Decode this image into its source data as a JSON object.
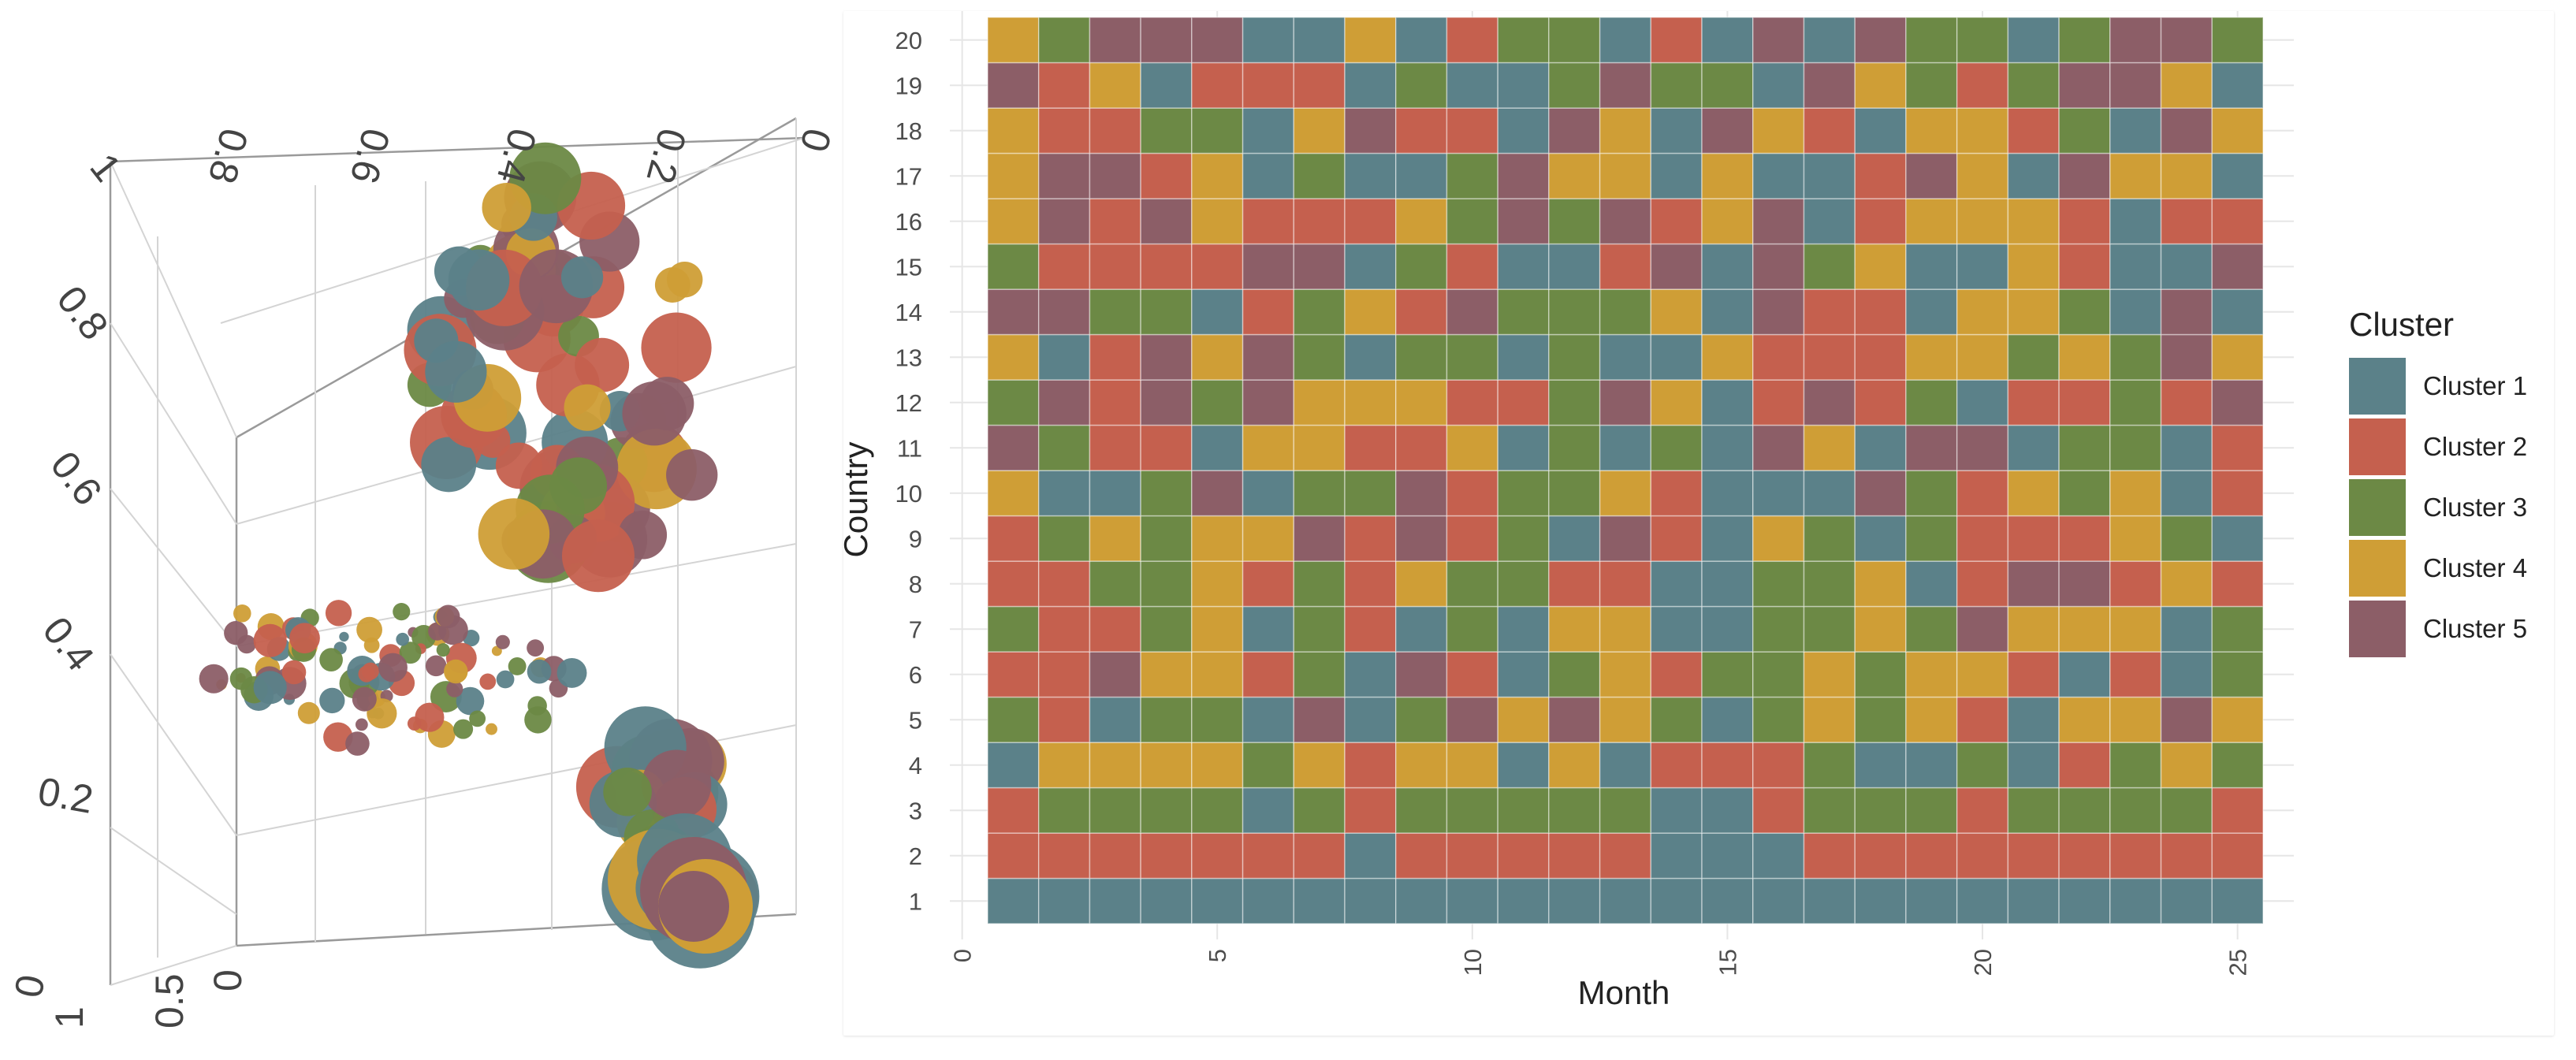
{
  "colors": {
    "Cluster 1": "#5b8189",
    "Cluster 2": "#c5604e",
    "Cluster 3": "#6c8945",
    "Cluster 4": "#cf9e36",
    "Cluster 5": "#8c5e67",
    "background": "#ffffff",
    "grid": "#e6e6e6"
  },
  "chart_data": [
    {
      "type": "scatter",
      "name": "3d-bubble-scatter",
      "title": "",
      "axes": {
        "axis_a": {
          "ticks": [
            "1",
            "0.8",
            "0.6",
            "0.4",
            "0.2",
            "0"
          ]
        },
        "axis_b": {
          "ticks": [
            "0.8",
            "0.6",
            "0.4",
            "0.2",
            "0"
          ]
        },
        "axis_c": {
          "ticks": [
            "1",
            "0.5",
            "0"
          ]
        }
      },
      "groups": [
        {
          "name": "upper-cluster",
          "center_approx": [
            0.7,
            0.2,
            0.8
          ],
          "size": "large",
          "count_approx": 60
        },
        {
          "name": "middle-cluster",
          "center_approx": [
            0.4,
            0.6,
            0.4
          ],
          "size": "small",
          "count_approx": 70
        },
        {
          "name": "lower-cluster",
          "center_approx": [
            0.1,
            0.2,
            0.1
          ],
          "size": "largest",
          "count_approx": 40
        }
      ],
      "series_colors": [
        "Cluster 1",
        "Cluster 2",
        "Cluster 3",
        "Cluster 4",
        "Cluster 5"
      ]
    },
    {
      "type": "heatmap",
      "name": "country-month-heatmap",
      "title": "",
      "xlabel": "Month",
      "ylabel": "Country",
      "x_ticks": [
        "0",
        "5",
        "10",
        "15",
        "20",
        "25"
      ],
      "x_range": [
        0,
        25
      ],
      "y_categories": [
        "1",
        "2",
        "3",
        "4",
        "5",
        "6",
        "7",
        "8",
        "9",
        "10",
        "11",
        "12",
        "13",
        "14",
        "15",
        "16",
        "17",
        "18",
        "19",
        "20"
      ],
      "months": 25,
      "legend_title": "Cluster",
      "legend": [
        "Cluster 1",
        "Cluster 2",
        "Cluster 3",
        "Cluster 4",
        "Cluster 5"
      ],
      "rows": {
        "1": [
          1,
          1,
          1,
          1,
          1,
          1,
          1,
          1,
          1,
          1,
          1,
          1,
          1,
          1,
          1,
          1,
          1,
          1,
          1,
          1,
          1,
          1,
          1,
          1,
          1
        ],
        "2": [
          2,
          2,
          2,
          2,
          2,
          2,
          2,
          1,
          2,
          2,
          2,
          2,
          2,
          1,
          1,
          1,
          2,
          2,
          2,
          2,
          2,
          2,
          2,
          2,
          2
        ],
        "3": [
          2,
          3,
          3,
          3,
          3,
          1,
          3,
          2,
          3,
          3,
          3,
          3,
          3,
          1,
          1,
          2,
          3,
          3,
          3,
          2,
          3,
          3,
          3,
          3,
          2
        ],
        "4": [
          1,
          4,
          4,
          4,
          4,
          3,
          4,
          2,
          4,
          4,
          1,
          4,
          1,
          2,
          2,
          2,
          3,
          1,
          1,
          3,
          1,
          2,
          3,
          4,
          3
        ],
        "5": [
          3,
          2,
          1,
          3,
          3,
          1,
          5,
          1,
          3,
          5,
          4,
          5,
          4,
          3,
          1,
          3,
          4,
          3,
          4,
          2,
          1,
          4,
          4,
          5,
          4
        ],
        "6": [
          2,
          2,
          5,
          4,
          4,
          2,
          3,
          1,
          5,
          2,
          1,
          3,
          4,
          2,
          3,
          3,
          4,
          3,
          4,
          4,
          2,
          1,
          2,
          1,
          3
        ],
        "7": [
          3,
          2,
          2,
          3,
          4,
          1,
          3,
          2,
          1,
          3,
          1,
          4,
          4,
          1,
          1,
          3,
          3,
          4,
          3,
          5,
          4,
          4,
          4,
          1,
          3
        ],
        "8": [
          2,
          2,
          3,
          3,
          4,
          2,
          3,
          2,
          4,
          3,
          3,
          2,
          2,
          1,
          1,
          3,
          3,
          4,
          1,
          2,
          5,
          5,
          2,
          4,
          2
        ],
        "9": [
          2,
          3,
          4,
          3,
          4,
          4,
          5,
          2,
          5,
          2,
          3,
          1,
          5,
          2,
          1,
          4,
          3,
          1,
          3,
          2,
          2,
          2,
          4,
          3,
          1
        ],
        "10": [
          4,
          1,
          1,
          3,
          5,
          1,
          3,
          3,
          5,
          2,
          3,
          3,
          4,
          2,
          1,
          1,
          1,
          5,
          3,
          2,
          4,
          3,
          4,
          1,
          2
        ],
        "11": [
          5,
          3,
          2,
          2,
          1,
          4,
          4,
          2,
          2,
          4,
          1,
          3,
          1,
          3,
          1,
          5,
          4,
          1,
          5,
          5,
          1,
          3,
          3,
          1,
          2
        ],
        "12": [
          3,
          5,
          2,
          5,
          3,
          5,
          4,
          4,
          4,
          2,
          2,
          3,
          5,
          4,
          1,
          2,
          5,
          2,
          3,
          1,
          2,
          2,
          3,
          2,
          5
        ],
        "13": [
          4,
          1,
          2,
          5,
          4,
          5,
          3,
          1,
          3,
          3,
          1,
          3,
          1,
          1,
          4,
          2,
          2,
          2,
          4,
          4,
          3,
          4,
          3,
          5,
          4
        ],
        "14": [
          5,
          5,
          3,
          3,
          1,
          2,
          3,
          4,
          2,
          5,
          3,
          3,
          3,
          4,
          1,
          5,
          2,
          2,
          1,
          4,
          4,
          3,
          1,
          5,
          1
        ],
        "15": [
          3,
          2,
          2,
          2,
          2,
          5,
          5,
          1,
          3,
          2,
          1,
          1,
          2,
          5,
          1,
          5,
          3,
          4,
          1,
          1,
          4,
          2,
          1,
          1,
          5
        ],
        "16": [
          4,
          5,
          2,
          5,
          4,
          2,
          2,
          2,
          4,
          3,
          5,
          3,
          5,
          2,
          4,
          5,
          1,
          2,
          4,
          4,
          4,
          2,
          1,
          2,
          2
        ],
        "17": [
          4,
          5,
          5,
          2,
          4,
          1,
          3,
          1,
          1,
          3,
          5,
          4,
          4,
          1,
          4,
          1,
          1,
          2,
          5,
          4,
          1,
          5,
          4,
          4,
          1
        ],
        "18": [
          4,
          2,
          2,
          3,
          3,
          1,
          4,
          5,
          2,
          2,
          1,
          5,
          4,
          1,
          5,
          4,
          2,
          1,
          4,
          4,
          2,
          3,
          1,
          5,
          4
        ],
        "19": [
          5,
          2,
          4,
          1,
          2,
          2,
          2,
          1,
          3,
          1,
          1,
          3,
          5,
          3,
          3,
          1,
          5,
          4,
          3,
          2,
          3,
          5,
          5,
          4,
          1
        ],
        "20": [
          4,
          3,
          5,
          5,
          5,
          1,
          1,
          4,
          1,
          2,
          3,
          3,
          1,
          2,
          1,
          5,
          1,
          5,
          3,
          3,
          1,
          3,
          5,
          5,
          3
        ]
      }
    }
  ]
}
